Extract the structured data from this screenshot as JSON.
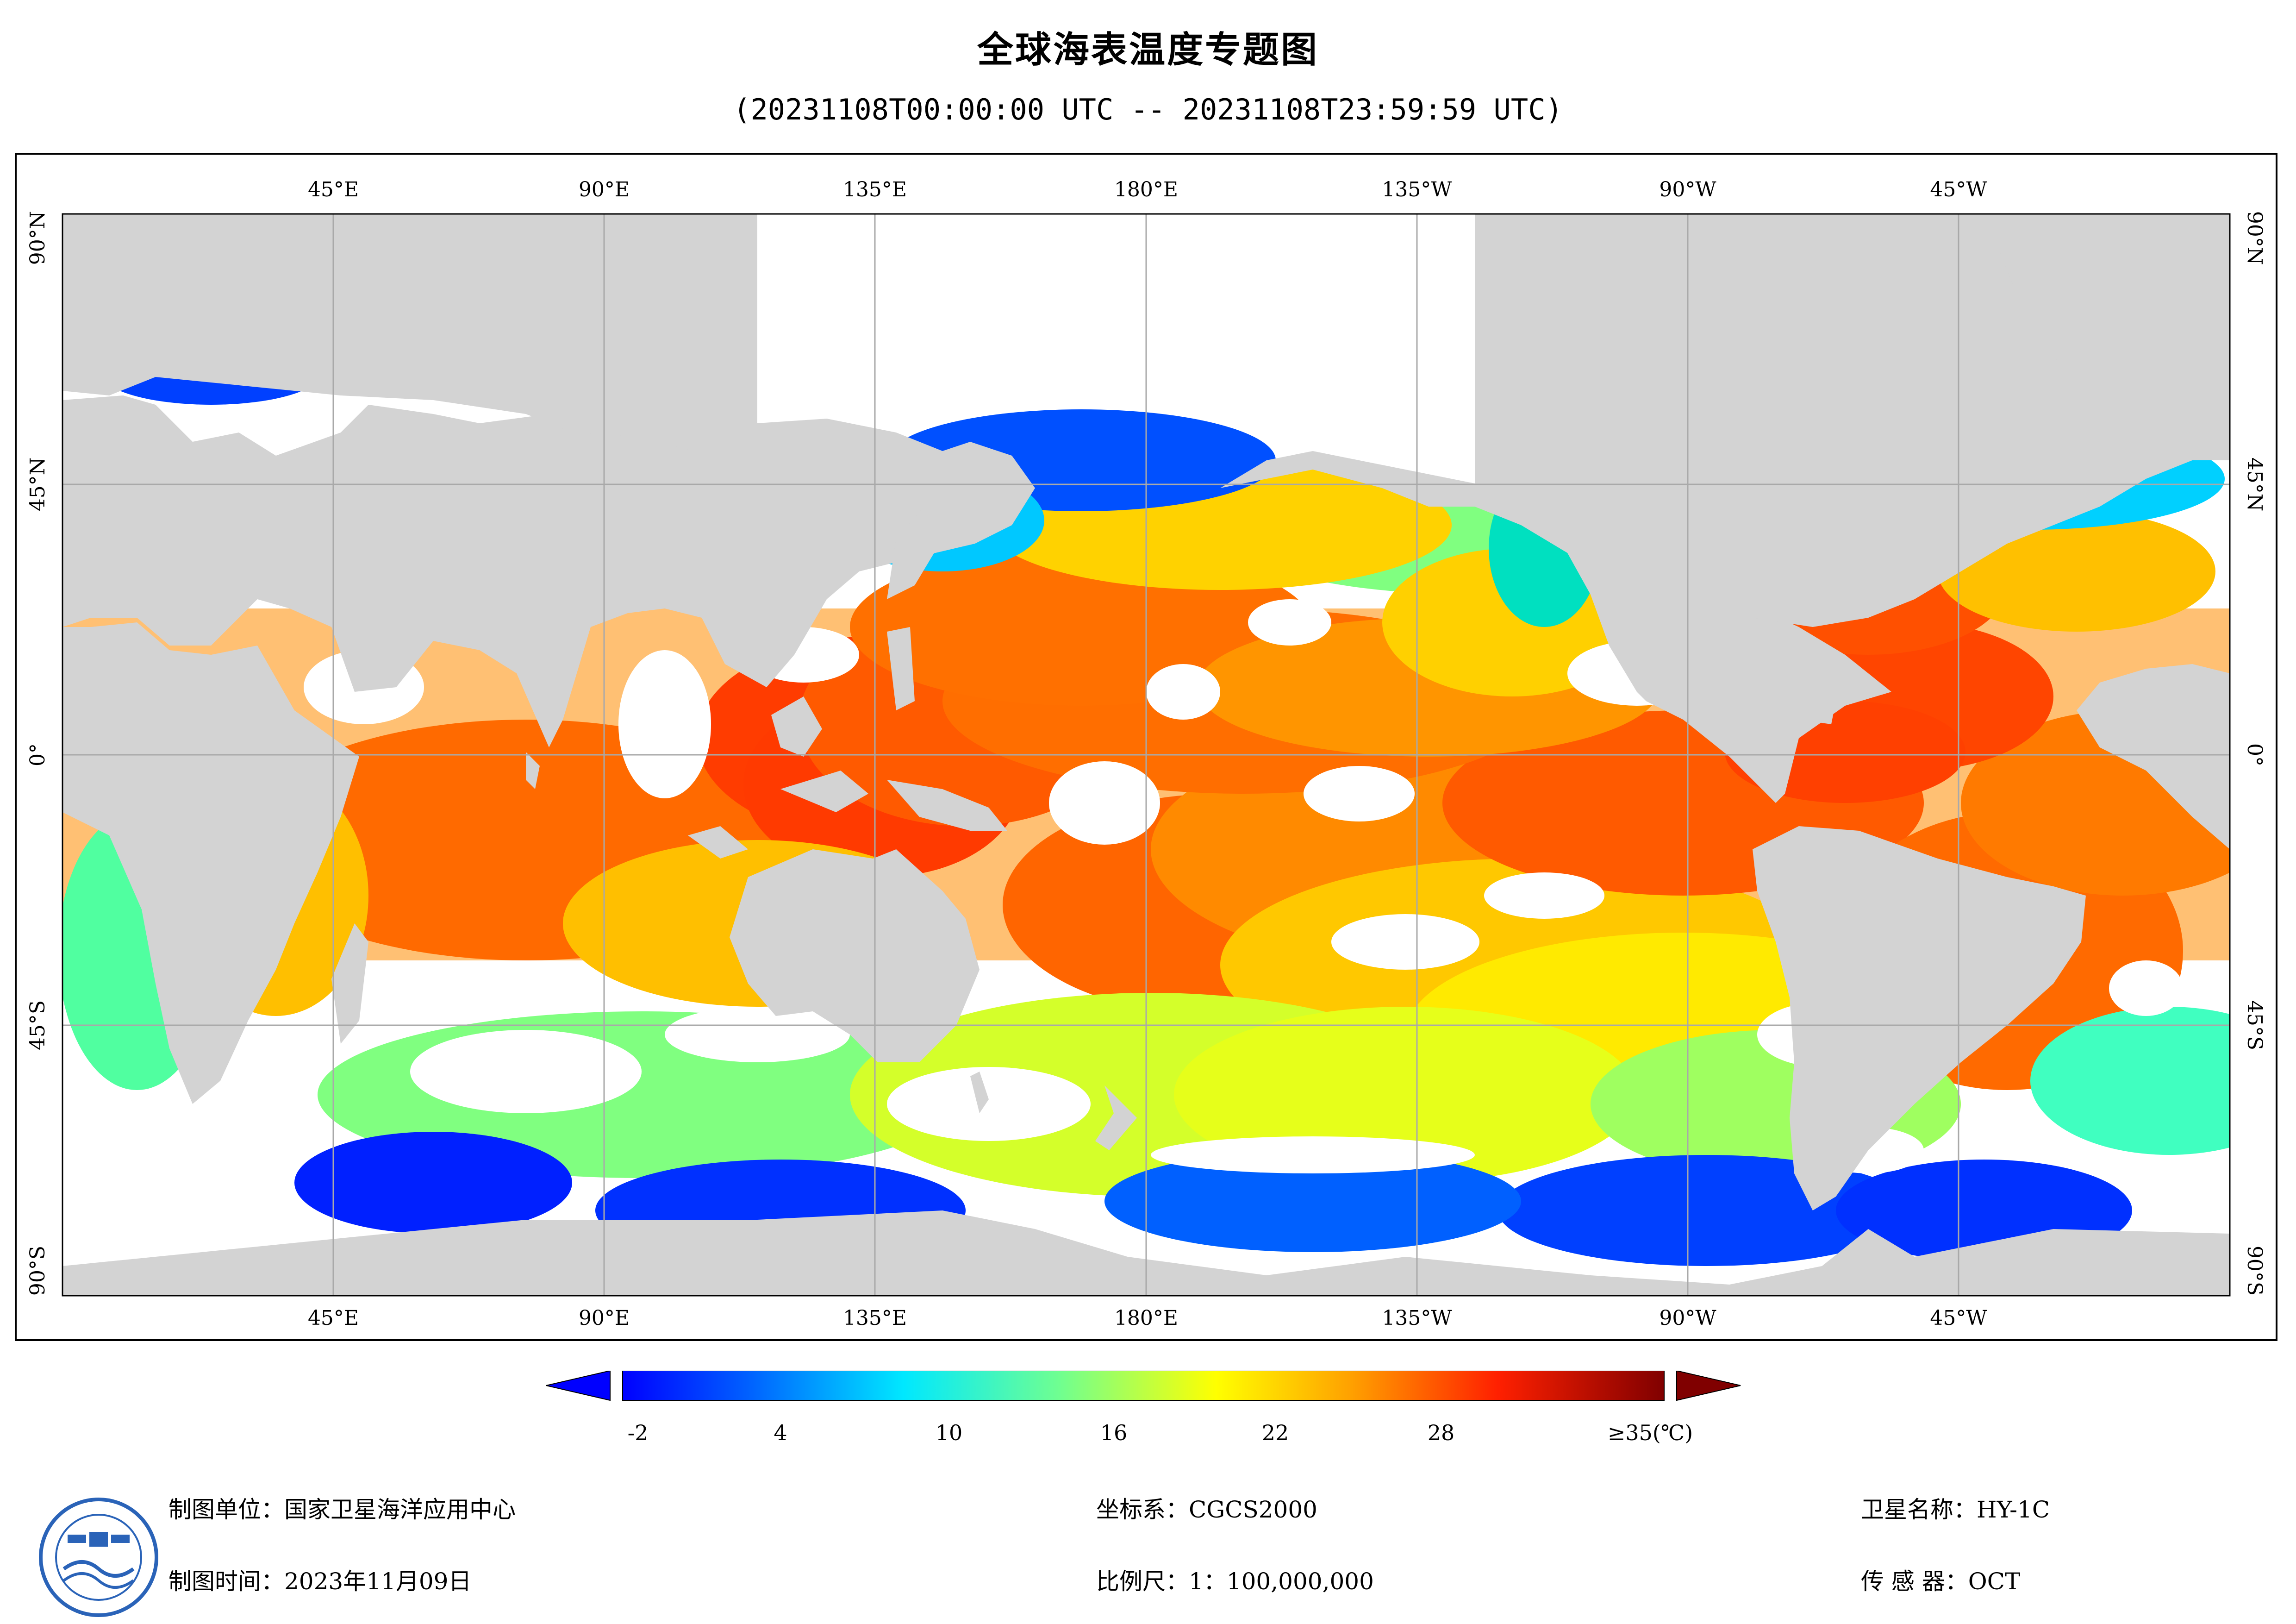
{
  "title": "全球海表温度专题图",
  "subtitle": "(20231108T00:00:00 UTC -- 20231108T23:59:59 UTC)",
  "map": {
    "lon_ticks": [
      "45°E",
      "90°E",
      "135°E",
      "180°E",
      "135°W",
      "90°W",
      "45°W"
    ],
    "lat_ticks": [
      "90°N",
      "45°N",
      "0°",
      "45°S",
      "90°S"
    ],
    "colors": {
      "land": "#d3d3d3",
      "grid": "#a9a9a9",
      "nodata": "#ffffff"
    }
  },
  "legend": {
    "tick_labels": [
      "-2",
      "4",
      "10",
      "16",
      "22",
      "28"
    ],
    "max_label": "≥35(℃)",
    "min_color": "#0000ff",
    "max_color": "#800000"
  },
  "info": {
    "unit": "制图单位：国家卫星海洋应用中心",
    "time": "制图时间：2023年11月09日",
    "crs": "坐标系：CGCS2000",
    "scale": "比例尺：1：100,000,000",
    "satellite": "卫星名称：HY-1C",
    "sensor": "传 感 器：OCT"
  },
  "logo": {
    "icon": "nsoas-logo-icon"
  }
}
